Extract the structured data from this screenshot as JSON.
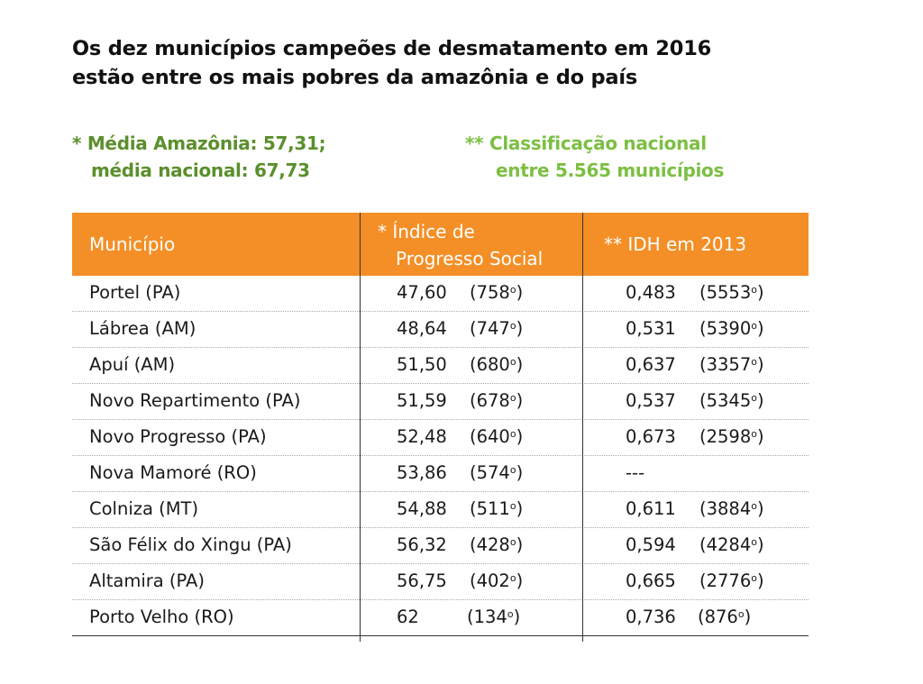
{
  "title": {
    "line1": "Os dez municípios campeões de desmatamento em 2016",
    "line2": "estão entre os mais pobres da amazônia e do país"
  },
  "notes": {
    "left_line1": "* Média Amazônia: 57,31;",
    "left_line2": "média nacional: 67,73",
    "right_line1": "** Classificação nacional",
    "right_line2": "entre 5.565 municípios"
  },
  "colors": {
    "header": "#f38f26",
    "note_left": "#5b8f2c",
    "note_right": "#7cbf42"
  },
  "chart_data": {
    "type": "table",
    "ordinal_mark": "o",
    "columns": [
      "Município",
      "* Índice de",
      "Progresso Social",
      "** IDH em 2013"
    ],
    "rows": [
      {
        "municipio": "Portel (PA)",
        "ips": "47,60",
        "ips_rank": "758",
        "idh": "0,483",
        "idh_rank": "5553"
      },
      {
        "municipio": "Lábrea (AM)",
        "ips": "48,64",
        "ips_rank": "747",
        "idh": "0,531",
        "idh_rank": "5390"
      },
      {
        "municipio": "Apuí (AM)",
        "ips": "51,50",
        "ips_rank": "680",
        "idh": "0,637",
        "idh_rank": "3357"
      },
      {
        "municipio": "Novo Repartimento (PA)",
        "ips": "51,59",
        "ips_rank": "678",
        "idh": "0,537",
        "idh_rank": "5345"
      },
      {
        "municipio": "Novo Progresso (PA)",
        "ips": "52,48",
        "ips_rank": "640",
        "idh": "0,673",
        "idh_rank": "2598"
      },
      {
        "municipio": "Nova Mamoré (RO)",
        "ips": "53,86",
        "ips_rank": "574",
        "idh": "---",
        "idh_rank": null
      },
      {
        "municipio": "Colniza (MT)",
        "ips": "54,88",
        "ips_rank": "511",
        "idh": "0,611",
        "idh_rank": "3884"
      },
      {
        "municipio": "São Félix do Xingu (PA)",
        "ips": "56,32",
        "ips_rank": "428",
        "idh": "0,594",
        "idh_rank": "4284"
      },
      {
        "municipio": "Altamira (PA)",
        "ips": "56,75",
        "ips_rank": "402",
        "idh": "0,665",
        "idh_rank": "2776"
      },
      {
        "municipio": "Porto Velho (RO)",
        "ips": "62",
        "ips_rank": "134",
        "idh": "0,736",
        "idh_rank": "876"
      }
    ]
  }
}
